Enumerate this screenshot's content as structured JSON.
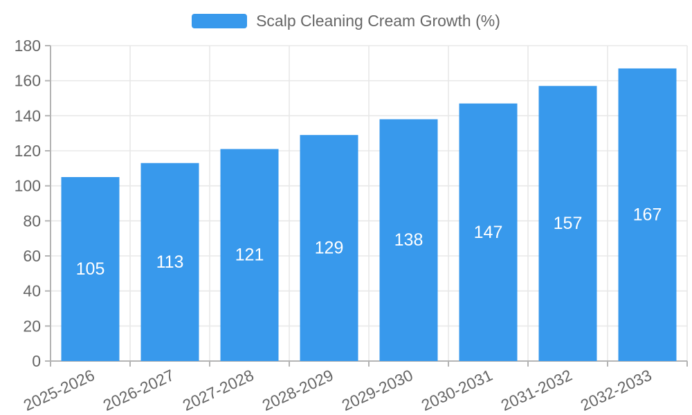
{
  "legend": {
    "label": "Scalp Cleaning Cream Growth (%)"
  },
  "chart_data": {
    "type": "bar",
    "title": "Scalp Cleaning Cream Growth (%)",
    "categories": [
      "2025-2026",
      "2026-2027",
      "2027-2028",
      "2028-2029",
      "2029-2030",
      "2030-2031",
      "2031-2032",
      "2032-2033"
    ],
    "values": [
      105,
      113,
      121,
      129,
      138,
      147,
      157,
      167
    ],
    "xlabel": "",
    "ylabel": "",
    "ylim": [
      0,
      180
    ],
    "ytick_interval": 20,
    "ytick_labels": [
      "0",
      "20",
      "40",
      "60",
      "80",
      "100",
      "120",
      "140",
      "160",
      "180"
    ],
    "grid": true,
    "legend_position": "top-center",
    "x_tick_label_rotation_deg": -25,
    "value_label_position": "inside-center",
    "colors": {
      "bar": "#3899EC",
      "bar_value_label": "#FFFFFF",
      "grid_line": "#E8E8E8",
      "axis_line": "#B3B3B3",
      "tick_label": "#666666",
      "legend_text": "#666666"
    }
  }
}
